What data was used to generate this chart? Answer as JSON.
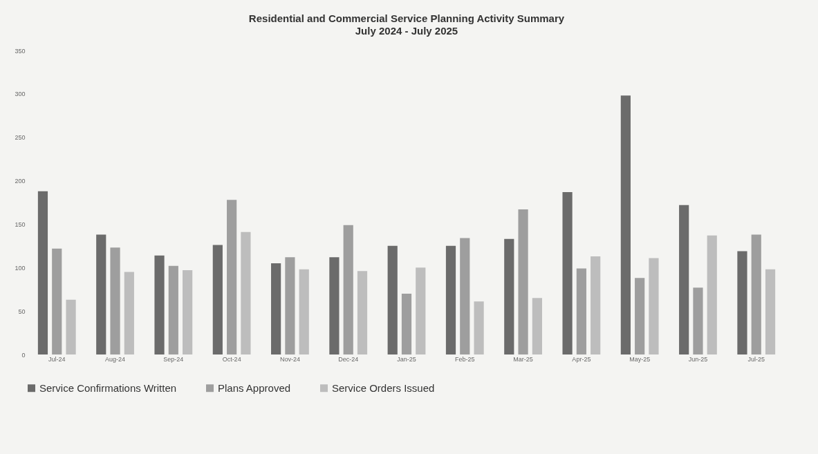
{
  "chart_data": {
    "type": "bar",
    "title": "Residential and Commercial Service Planning Activity Summary",
    "subtitle": "July 2024 - July 2025",
    "categories": [
      "Jul-24",
      "Aug-24",
      "Sep-24",
      "Oct-24",
      "Nov-24",
      "Dec-24",
      "Jan-25",
      "Feb-25",
      "Mar-25",
      "Apr-25",
      "May-25",
      "Jun-25",
      "Jul-25"
    ],
    "series": [
      {
        "name": "Service Confirmations Written",
        "color": "#6b6b6b",
        "values": [
          188,
          138,
          114,
          126,
          105,
          112,
          125,
          125,
          133,
          187,
          298,
          172,
          119
        ]
      },
      {
        "name": "Plans Approved",
        "color": "#9e9e9e",
        "values": [
          122,
          123,
          102,
          178,
          112,
          149,
          70,
          134,
          167,
          99,
          88,
          77,
          138
        ]
      },
      {
        "name": "Service Orders Issued",
        "color": "#bdbdbd",
        "values": [
          63,
          95,
          97,
          141,
          98,
          96,
          100,
          61,
          65,
          113,
          111,
          137,
          98
        ]
      }
    ],
    "ylim": [
      0,
      350
    ],
    "yticks": [
      0,
      50,
      100,
      150,
      200,
      250,
      300,
      350
    ],
    "grid": false,
    "legend": "bottom"
  }
}
